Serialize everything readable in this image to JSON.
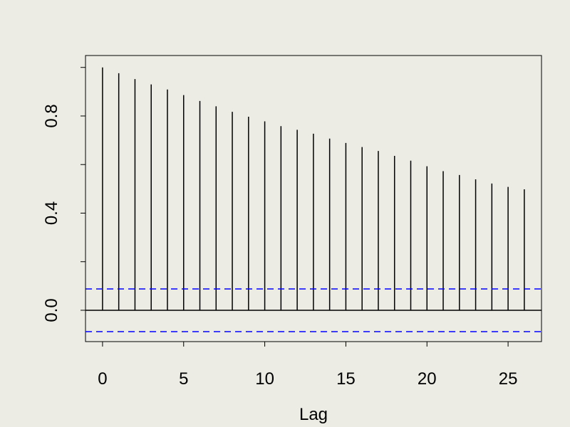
{
  "chart_data": {
    "type": "bar",
    "style": "acf-spikes",
    "title": "",
    "xlabel": "Lag",
    "ylabel": "",
    "x": [
      0,
      1,
      2,
      3,
      4,
      5,
      6,
      7,
      8,
      9,
      10,
      11,
      12,
      13,
      14,
      15,
      16,
      17,
      18,
      19,
      20,
      21,
      22,
      23,
      24,
      25,
      26
    ],
    "values": [
      1.0,
      0.976,
      0.952,
      0.93,
      0.909,
      0.886,
      0.862,
      0.84,
      0.817,
      0.797,
      0.778,
      0.758,
      0.743,
      0.727,
      0.707,
      0.689,
      0.672,
      0.656,
      0.636,
      0.616,
      0.593,
      0.573,
      0.557,
      0.539,
      0.522,
      0.508,
      0.498
    ],
    "confidence_bound": 0.088,
    "xlim": [
      -1.05,
      27.06
    ],
    "ylim": [
      -0.129,
      1.049
    ],
    "xticks": [
      0,
      5,
      10,
      15,
      20,
      25
    ],
    "xtick_labels": [
      "0",
      "5",
      "10",
      "15",
      "20",
      "25"
    ],
    "yticks": [
      0,
      0.2,
      0.4,
      0.6,
      0.8,
      1.0
    ],
    "ytick_labels": [
      "0.0",
      "",
      "0.4",
      "",
      "0.8",
      ""
    ],
    "grid": false,
    "colors": {
      "background": "#ecece4",
      "spikes": "#000000",
      "confidence": "#0000ff"
    }
  }
}
